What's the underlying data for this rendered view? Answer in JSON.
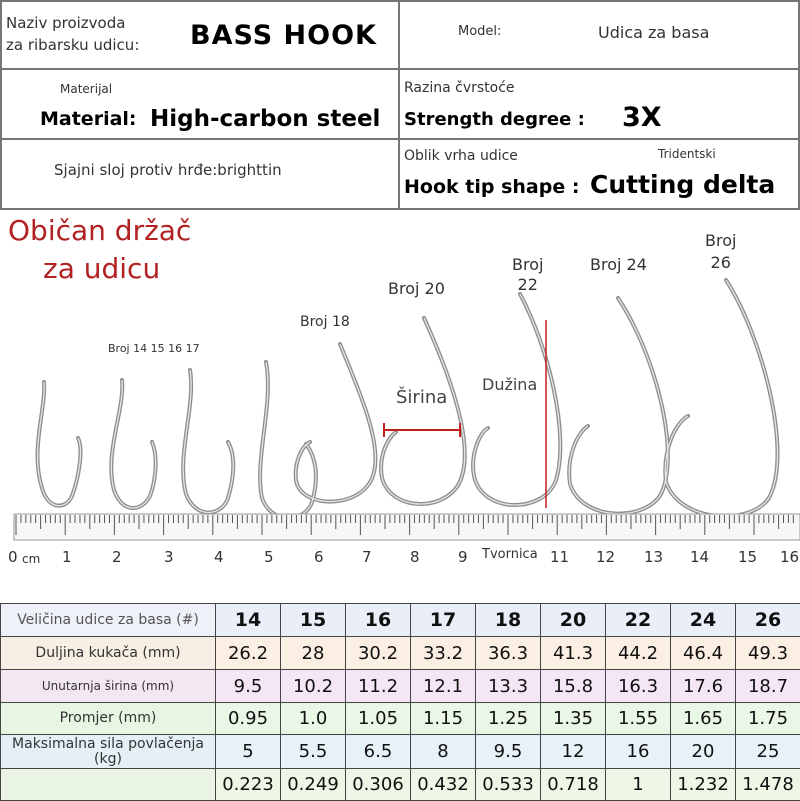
{
  "header": {
    "product_label_line1": "Naziv proizvoda",
    "product_label_line2": "za ribarsku udicu:",
    "product_name": "BASS HOOK",
    "model_label": "Model:",
    "model_value": "Udica za basa",
    "material_small": "Materijal",
    "material_label": "Material:",
    "material_value": "High-carbon steel",
    "strength_small": "Razina čvrstoće",
    "strength_label": "Strength degree :",
    "strength_value": "3X",
    "coating": "Sjajni sloj protiv hrđe:brighttin",
    "tip_small": "Oblik vrha udice",
    "tip_small_right": "Tridentski",
    "tip_label": "Hook tip shape :",
    "tip_value": "Cutting delta"
  },
  "figure": {
    "title_line1": "Običan držač",
    "title_line2": "za udicu",
    "label_small": "Broj 14 15 16 17",
    "label_18": "Broj 18",
    "label_20": "Broj 20",
    "label_22_line1": "Broj",
    "label_22_line2": "22",
    "label_24": "Broj 24",
    "label_26_line1": "Broj",
    "label_26_line2": "26",
    "width_label": "Širina",
    "length_label": "Dužina",
    "factory_label": "Tvornica",
    "ruler_zero": "0",
    "ruler_unit": "cm",
    "ruler_numbers": [
      "1",
      "2",
      "3",
      "4",
      "5",
      "6",
      "7",
      "8",
      "9",
      "11",
      "12",
      "13",
      "14",
      "15",
      "16"
    ]
  },
  "table": {
    "header_label": "Veličina udice za basa (#)",
    "sizes": [
      "14",
      "15",
      "16",
      "17",
      "18",
      "20",
      "22",
      "24",
      "26"
    ],
    "rows": [
      {
        "label": "Duljina kukača (mm)",
        "values": [
          "26.2",
          "28",
          "30.2",
          "33.2",
          "36.3",
          "41.3",
          "44.2",
          "46.4",
          "49.3"
        ]
      },
      {
        "label": "Unutarnja širina (mm)",
        "values": [
          "9.5",
          "10.2",
          "11.2",
          "12.1",
          "13.3",
          "15.8",
          "16.3",
          "17.6",
          "18.7"
        ]
      },
      {
        "label": "Promjer (mm)",
        "values": [
          "0.95",
          "1.0",
          "1.05",
          "1.15",
          "1.25",
          "1.35",
          "1.55",
          "1.65",
          "1.75"
        ]
      },
      {
        "label": "Maksimalna sila povlačenja (kg)",
        "values": [
          "5",
          "5.5",
          "6.5",
          "8",
          "9.5",
          "12",
          "16",
          "20",
          "25"
        ]
      },
      {
        "label": "",
        "values": [
          "0.223",
          "0.249",
          "0.306",
          "0.432",
          "0.533",
          "0.718",
          "1",
          "1.232",
          "1.478"
        ]
      }
    ]
  },
  "colors": {
    "title_red": "#b22222",
    "measure_red": "#c41e1e",
    "border": "#444444"
  }
}
